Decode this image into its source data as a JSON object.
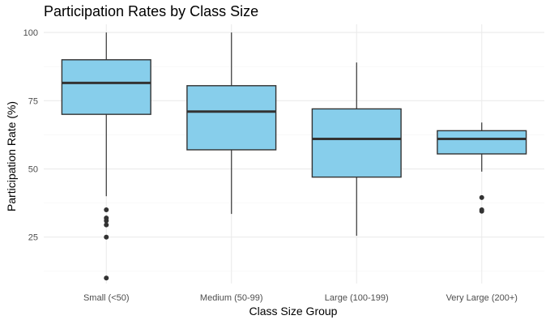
{
  "chart_data": {
    "type": "boxplot",
    "title": "Participation Rates by Class Size",
    "xlabel": "Class Size Group",
    "ylabel": "Participation Rate (%)",
    "ylim": [
      8,
      103
    ],
    "yticks": [
      25,
      50,
      75,
      100
    ],
    "grid": true,
    "legend": "none",
    "box_fill": "#87CEEB",
    "box_stroke": "#333333",
    "categories": [
      "Small (<50)",
      "Medium (50-99)",
      "Large (100-199)",
      "Very Large (200+)"
    ],
    "boxes": [
      {
        "category": "Small (<50)",
        "whisker_low": 40,
        "q1": 70,
        "median": 81.5,
        "q3": 90,
        "whisker_high": 100,
        "outliers": [
          35,
          32,
          31,
          29.5,
          25,
          10
        ]
      },
      {
        "category": "Medium (50-99)",
        "whisker_low": 33.5,
        "q1": 57,
        "median": 71,
        "q3": 80.5,
        "whisker_high": 100,
        "outliers": []
      },
      {
        "category": "Large (100-199)",
        "whisker_low": 25.5,
        "q1": 47,
        "median": 61,
        "q3": 72,
        "whisker_high": 89,
        "outliers": []
      },
      {
        "category": "Very Large (200+)",
        "whisker_low": 49,
        "q1": 55.5,
        "median": 61,
        "q3": 64,
        "whisker_high": 67,
        "outliers": [
          39.5,
          35,
          34.5
        ]
      }
    ]
  }
}
